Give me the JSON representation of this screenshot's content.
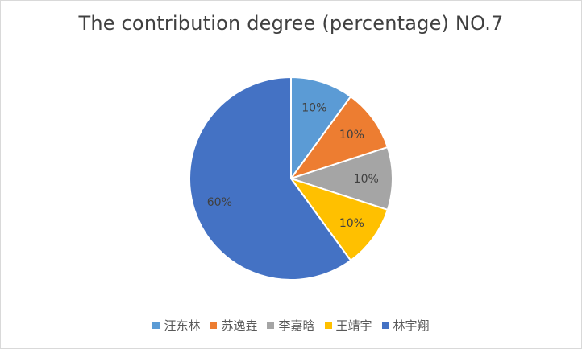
{
  "chart_data": {
    "type": "pie",
    "title": "The contribution degree (percentage) NO.7",
    "slices": [
      {
        "name": "汪东林",
        "value": 10,
        "label": "10%",
        "color": "#5b9bd5"
      },
      {
        "name": "苏逸垚",
        "value": 10,
        "label": "10%",
        "color": "#ed7d31"
      },
      {
        "name": "李嘉晗",
        "value": 10,
        "label": "10%",
        "color": "#a5a5a5"
      },
      {
        "name": "王靖宇",
        "value": 10,
        "label": "10%",
        "color": "#ffc000"
      },
      {
        "name": "林宇翔",
        "value": 60,
        "label": "60%",
        "color": "#4472c4"
      }
    ],
    "legend_position": "bottom"
  }
}
